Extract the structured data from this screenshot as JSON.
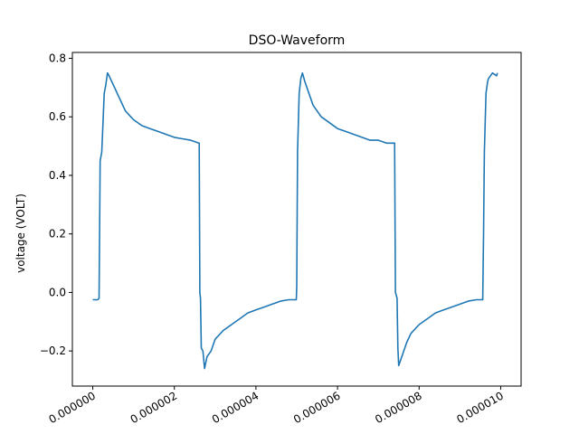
{
  "chart_data": {
    "type": "line",
    "title": "DSO-Waveform",
    "xlabel": "",
    "ylabel": "voltage (VOLT)",
    "xlim": [
      -5e-07,
      1.05e-05
    ],
    "ylim": [
      -0.32,
      0.82
    ],
    "grid": false,
    "x_ticks": [
      {
        "value": 0.0,
        "label": "0.000000"
      },
      {
        "value": 2e-06,
        "label": "0.000002"
      },
      {
        "value": 4e-06,
        "label": "0.000004"
      },
      {
        "value": 6e-06,
        "label": "0.000006"
      },
      {
        "value": 8e-06,
        "label": "0.000008"
      },
      {
        "value": 1e-05,
        "label": "0.000010"
      }
    ],
    "y_ticks": [
      {
        "value": -0.2,
        "label": "−0.2"
      },
      {
        "value": 0.0,
        "label": "0.0"
      },
      {
        "value": 0.2,
        "label": "0.2"
      },
      {
        "value": 0.4,
        "label": "0.4"
      },
      {
        "value": 0.6,
        "label": "0.6"
      },
      {
        "value": 0.8,
        "label": "0.8"
      }
    ],
    "series": [
      {
        "color": "#1f77b4",
        "x": [
          0.0,
          1.2e-07,
          1.55e-07,
          1.8e-07,
          2.2e-07,
          2.8e-07,
          3.2e-07,
          3.6e-07,
          4e-07,
          5e-07,
          6e-07,
          8e-07,
          1e-06,
          1.2e-06,
          1.4e-06,
          1.6e-06,
          1.8e-06,
          2e-06,
          2.2e-06,
          2.4e-06,
          2.6e-06,
          2.61e-06,
          2.625e-06,
          2.64e-06,
          2.66e-06,
          2.7e-06,
          2.74e-06,
          2.8e-06,
          2.9e-06,
          3e-06,
          3.2e-06,
          3.4e-06,
          3.6e-06,
          3.8e-06,
          4e-06,
          4.2e-06,
          4.4e-06,
          4.6e-06,
          4.8e-06,
          4.99e-06,
          5e-06,
          5.02e-06,
          5.06e-06,
          5.1e-06,
          5.14e-06,
          5.2e-06,
          5.3e-06,
          5.4e-06,
          5.6e-06,
          5.8e-06,
          6e-06,
          6.2e-06,
          6.4e-06,
          6.6e-06,
          6.8e-06,
          7e-06,
          7.2e-06,
          7.4e-06,
          7.42e-06,
          7.46e-06,
          7.48e-06,
          7.5e-06,
          7.6e-06,
          7.7e-06,
          7.8e-06,
          8e-06,
          8.2e-06,
          8.4e-06,
          8.6e-06,
          8.8e-06,
          9e-06,
          9.2e-06,
          9.4e-06,
          9.56e-06,
          9.58e-06,
          9.6e-06,
          9.64e-06,
          9.68e-06,
          9.7e-06,
          9.8e-06,
          9.9e-06,
          9.92e-06
        ],
        "y": [
          -0.025,
          -0.025,
          -0.02,
          0.45,
          0.48,
          0.68,
          0.71,
          0.75,
          0.74,
          0.71,
          0.68,
          0.62,
          0.59,
          0.57,
          0.56,
          0.55,
          0.54,
          0.53,
          0.525,
          0.52,
          0.51,
          0.51,
          0.0,
          -0.02,
          -0.19,
          -0.2,
          -0.26,
          -0.22,
          -0.2,
          -0.16,
          -0.13,
          -0.11,
          -0.09,
          -0.07,
          -0.06,
          -0.05,
          -0.04,
          -0.03,
          -0.025,
          -0.025,
          0.02,
          0.48,
          0.68,
          0.73,
          0.75,
          0.72,
          0.68,
          0.64,
          0.6,
          0.58,
          0.56,
          0.55,
          0.54,
          0.53,
          0.52,
          0.52,
          0.51,
          0.51,
          0.0,
          -0.02,
          -0.19,
          -0.25,
          -0.21,
          -0.17,
          -0.14,
          -0.11,
          -0.09,
          -0.07,
          -0.06,
          -0.05,
          -0.04,
          -0.03,
          -0.025,
          -0.025,
          0.2,
          0.48,
          0.68,
          0.72,
          0.73,
          0.75,
          0.74,
          0.75
        ]
      }
    ]
  }
}
